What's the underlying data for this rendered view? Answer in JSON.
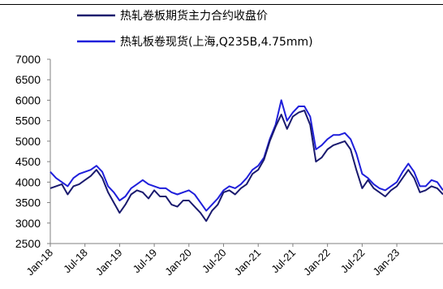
{
  "chart_data": {
    "type": "line",
    "title": "",
    "xlabel": "",
    "ylabel": "",
    "ylim": [
      2500,
      7000
    ],
    "yticks": [
      2500,
      3000,
      3500,
      4000,
      4500,
      5000,
      5500,
      6000,
      6500,
      7000
    ],
    "xticks": [
      "Jan-18",
      "Jul-18",
      "Jan-19",
      "Jul-19",
      "Jan-20",
      "Jul-20",
      "Jan-21",
      "Jul-21",
      "Jan-22",
      "Jul-22",
      "Jan-23"
    ],
    "xlim": [
      "2018-01",
      "2023-09"
    ],
    "grid": false,
    "legend_position": "top",
    "x": [
      "2018-01",
      "2018-02",
      "2018-03",
      "2018-04",
      "2018-05",
      "2018-06",
      "2018-07",
      "2018-08",
      "2018-09",
      "2018-10",
      "2018-11",
      "2018-12",
      "2019-01",
      "2019-02",
      "2019-03",
      "2019-04",
      "2019-05",
      "2019-06",
      "2019-07",
      "2019-08",
      "2019-09",
      "2019-10",
      "2019-11",
      "2019-12",
      "2020-01",
      "2020-02",
      "2020-03",
      "2020-04",
      "2020-05",
      "2020-06",
      "2020-07",
      "2020-08",
      "2020-09",
      "2020-10",
      "2020-11",
      "2020-12",
      "2021-01",
      "2021-02",
      "2021-03",
      "2021-04",
      "2021-05",
      "2021-06",
      "2021-07",
      "2021-08",
      "2021-09",
      "2021-10",
      "2021-11",
      "2021-12",
      "2022-01",
      "2022-02",
      "2022-03",
      "2022-04",
      "2022-05",
      "2022-06",
      "2022-07",
      "2022-08",
      "2022-09",
      "2022-10",
      "2022-11",
      "2022-12",
      "2023-01",
      "2023-02",
      "2023-03",
      "2023-04",
      "2023-05",
      "2023-06",
      "2023-07",
      "2023-08",
      "2023-09"
    ],
    "series": [
      {
        "name": "热轧卷板期货主力合约收盘价",
        "color": "#1a1a6e",
        "values": [
          3850,
          3900,
          3950,
          3700,
          3900,
          3950,
          4050,
          4150,
          4300,
          4100,
          3750,
          3500,
          3250,
          3450,
          3700,
          3800,
          3750,
          3600,
          3800,
          3650,
          3650,
          3450,
          3400,
          3550,
          3550,
          3400,
          3250,
          3050,
          3300,
          3450,
          3750,
          3800,
          3700,
          3850,
          3950,
          4200,
          4300,
          4550,
          5000,
          5350,
          5650,
          5300,
          5600,
          5700,
          5750,
          5400,
          4500,
          4600,
          4800,
          4900,
          4950,
          5000,
          4800,
          4300,
          3850,
          4050,
          3850,
          3750,
          3650,
          3800,
          3900,
          4100,
          4300,
          4100,
          3750,
          3800,
          3900,
          3850,
          3700
        ]
      },
      {
        "name": "热轧板卷现货(上海,Q235B,4.75mm)",
        "color": "#1f1fdb",
        "values": [
          4250,
          4100,
          4000,
          3900,
          4100,
          4200,
          4250,
          4300,
          4400,
          4250,
          3900,
          3750,
          3550,
          3650,
          3850,
          3950,
          4050,
          3950,
          3900,
          3850,
          3850,
          3750,
          3700,
          3750,
          3800,
          3700,
          3500,
          3300,
          3450,
          3600,
          3800,
          3900,
          3850,
          3950,
          4100,
          4300,
          4400,
          4600,
          5050,
          5400,
          6000,
          5500,
          5700,
          5850,
          5850,
          5600,
          4800,
          4900,
          5050,
          5150,
          5150,
          5200,
          5050,
          4700,
          4200,
          4100,
          3950,
          3850,
          3800,
          3900,
          4000,
          4250,
          4450,
          4250,
          3900,
          3900,
          4050,
          4000,
          3800
        ]
      }
    ]
  }
}
